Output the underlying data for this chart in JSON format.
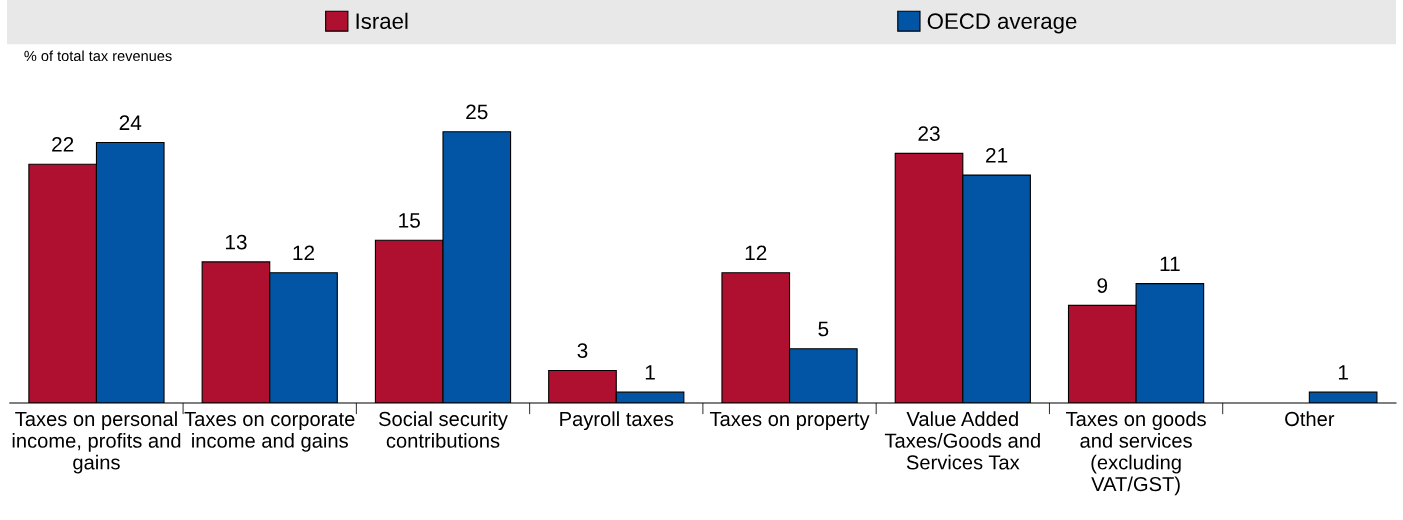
{
  "chart_data": {
    "type": "bar",
    "ylabel": "% of total tax revenues",
    "categories": [
      "Taxes on personal\nincome, profits and\ngains",
      "Taxes on corporate\nincome and gains",
      "Social security\ncontributions",
      "Payroll taxes",
      "Taxes on property",
      "Value Added\nTaxes/Goods and\nServices Tax",
      "Taxes on goods\nand services\n(excluding\nVAT/GST)",
      "Other"
    ],
    "series": [
      {
        "name": "Israel",
        "color": "#b01030",
        "values": [
          22,
          13,
          15,
          3,
          12,
          23,
          9,
          null
        ]
      },
      {
        "name": "OECD average",
        "color": "#0255a4",
        "values": [
          24,
          12,
          25,
          1,
          5,
          21,
          11,
          1
        ]
      }
    ],
    "data_labels": true,
    "legend": "top",
    "grid": false
  }
}
